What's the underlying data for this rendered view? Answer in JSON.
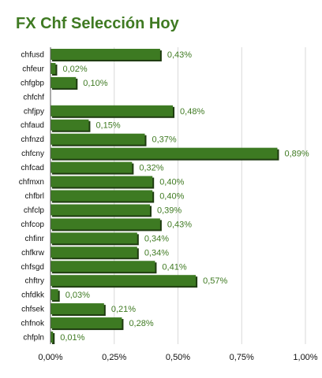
{
  "chart_data": {
    "type": "bar",
    "orientation": "horizontal",
    "title": "FX Chf Selección Hoy",
    "categories": [
      "chfusd",
      "chfeur",
      "chfgbp",
      "chfchf",
      "chfjpy",
      "chfaud",
      "chfnzd",
      "chfcny",
      "chfcad",
      "chfmxn",
      "chfbrl",
      "chfclp",
      "chfcop",
      "chfinr",
      "chfkrw",
      "chfsgd",
      "chftry",
      "chfdkk",
      "chfsek",
      "chfnok",
      "chfpln"
    ],
    "values": [
      0.43,
      0.02,
      0.1,
      0.0,
      0.48,
      0.15,
      0.37,
      0.89,
      0.32,
      0.4,
      0.4,
      0.39,
      0.43,
      0.34,
      0.34,
      0.41,
      0.57,
      0.03,
      0.21,
      0.28,
      0.01
    ],
    "value_labels": [
      "0,43%",
      "0,02%",
      "0,10%",
      "",
      "0,48%",
      "0,15%",
      "0,37%",
      "0,89%",
      "0,32%",
      "0,40%",
      "0,40%",
      "0,39%",
      "0,43%",
      "0,34%",
      "0,34%",
      "0,41%",
      "0,57%",
      "0,03%",
      "0,21%",
      "0,28%",
      "0,01%"
    ],
    "x_ticks": [
      0,
      0.25,
      0.5,
      0.75,
      1.0
    ],
    "x_tick_labels": [
      "0,00%",
      "0,25%",
      "0,50%",
      "0,75%",
      "1,00%"
    ],
    "xlim": [
      0,
      1.0
    ],
    "grid": true,
    "legend": "none",
    "xlabel": "",
    "ylabel": "",
    "colors": {
      "bar": "#3d7a22",
      "bar_shadow": "#1e3b10",
      "title": "#3f7a22",
      "value_label": "#3f7a22",
      "grid": "#d9d9d9",
      "axis": "#555555"
    }
  }
}
